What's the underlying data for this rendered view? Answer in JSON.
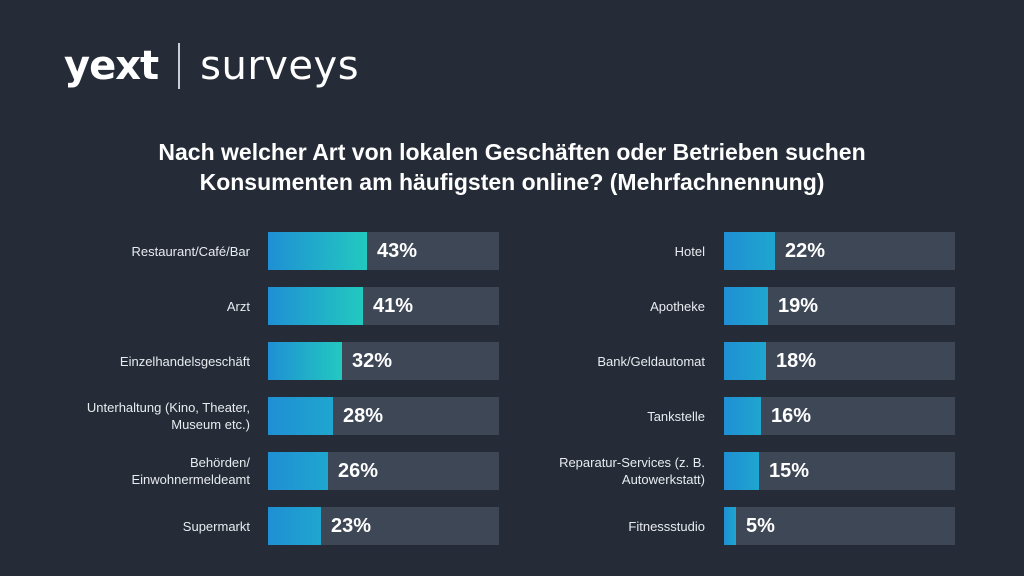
{
  "brand": {
    "logo": "yext",
    "product": "surveys"
  },
  "title_lines": [
    "Nach welcher Art von lokalen Geschäften oder Betrieben suchen",
    "Konsumenten am häufigsten online? (Mehrfachnennung)"
  ],
  "colors": {
    "background": "#252c38",
    "track": "#3e4756",
    "fill_start": "#1f8fd4",
    "fill_end": "#22c9c0"
  },
  "chart_data": {
    "type": "bar",
    "orientation": "horizontal",
    "title": "Nach welcher Art von lokalen Geschäften oder Betrieben suchen Konsumenten am häufigsten online? (Mehrfachnennung)",
    "xlim": [
      0,
      100
    ],
    "grid": false,
    "columns": [
      {
        "categories": [
          "Restaurant/Café/Bar",
          "Arzt",
          "Einzelhandelsgeschäft",
          "Unterhaltung (Kino, Theater, Museum etc.)",
          "Behörden/ Einwohnermeldeamt",
          "Supermarkt"
        ],
        "label_lines": [
          [
            "Restaurant/Café/Bar"
          ],
          [
            "Arzt"
          ],
          [
            "Einzelhandelsgeschäft"
          ],
          [
            "Unterhaltung (Kino, Theater,",
            "Museum etc.)"
          ],
          [
            "Behörden/",
            "Einwohnermeldeamt"
          ],
          [
            "Supermarkt"
          ]
        ],
        "values": [
          43,
          41,
          32,
          28,
          26,
          23
        ],
        "value_labels": [
          "43%",
          "41%",
          "32%",
          "28%",
          "26%",
          "23%"
        ]
      },
      {
        "categories": [
          "Hotel",
          "Apotheke",
          "Bank/Geldautomat",
          "Tankstelle",
          "Reparatur-Services (z. B. Autowerkstatt)",
          "Fitnessstudio"
        ],
        "label_lines": [
          [
            "Hotel"
          ],
          [
            "Apotheke"
          ],
          [
            "Bank/Geldautomat"
          ],
          [
            "Tankstelle"
          ],
          [
            "Reparatur-Services (z. B.",
            "Autowerkstatt)"
          ],
          [
            "Fitnessstudio"
          ]
        ],
        "values": [
          22,
          19,
          18,
          16,
          15,
          5
        ],
        "value_labels": [
          "22%",
          "19%",
          "18%",
          "16%",
          "15%",
          "5%"
        ]
      }
    ]
  }
}
